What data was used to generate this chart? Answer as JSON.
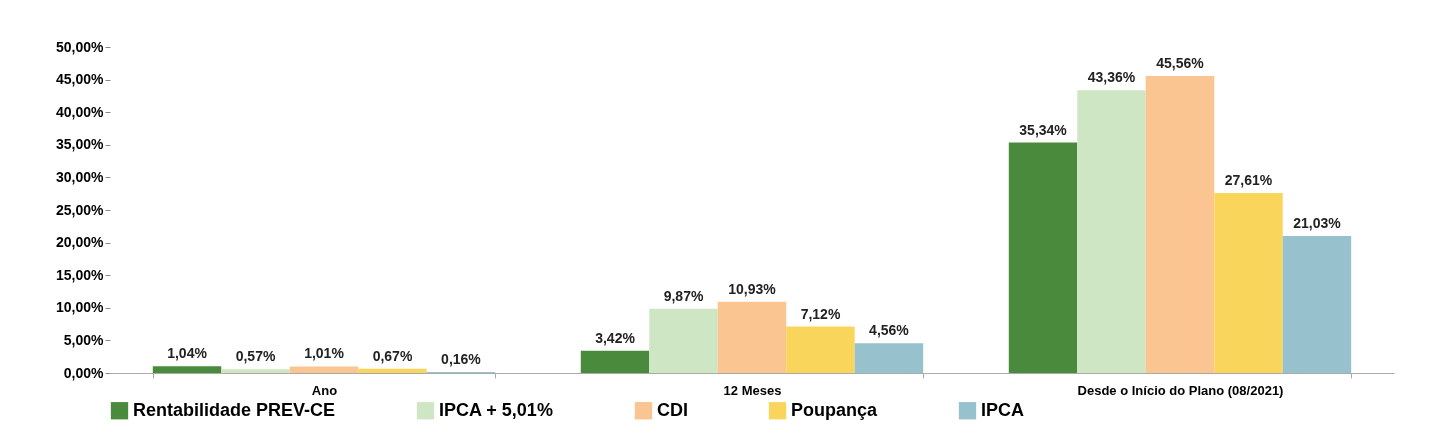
{
  "chart_data": {
    "type": "bar",
    "categories": [
      "Ano",
      "12 Meses",
      "Desde o Início do Plano (08/2021)"
    ],
    "series": [
      {
        "name": "Rentabilidade PREV-CE",
        "color": "#4a8a3c",
        "values": [
          1.04,
          3.42,
          35.34
        ],
        "value_labels": [
          "1,04%",
          "3,42%",
          "35,34%"
        ]
      },
      {
        "name": "IPCA + 5,01%",
        "color": "#cfe6c5",
        "values": [
          0.57,
          9.87,
          43.36
        ],
        "value_labels": [
          "0,57%",
          "9,87%",
          "43,36%"
        ]
      },
      {
        "name": "CDI",
        "color": "#fbc592",
        "values": [
          1.01,
          10.93,
          45.56
        ],
        "value_labels": [
          "1,01%",
          "10,93%",
          "45,56%"
        ]
      },
      {
        "name": "Poupança",
        "color": "#fad55c",
        "values": [
          0.67,
          7.12,
          27.61
        ],
        "value_labels": [
          "0,67%",
          "7,12%",
          "27,61%"
        ]
      },
      {
        "name": "IPCA",
        "color": "#97c1cd",
        "values": [
          0.16,
          4.56,
          21.03
        ],
        "value_labels": [
          "0,16%",
          "4,56%",
          "21,03%"
        ]
      }
    ],
    "ylim": [
      0,
      50
    ],
    "yticks": [
      {
        "value": 0,
        "label": "0,00%"
      },
      {
        "value": 5,
        "label": "5,00%"
      },
      {
        "value": 10,
        "label": "10,00%"
      },
      {
        "value": 15,
        "label": "15,00%"
      },
      {
        "value": 20,
        "label": "20,00%"
      },
      {
        "value": 25,
        "label": "25,00%"
      },
      {
        "value": 30,
        "label": "30,00%"
      },
      {
        "value": 35,
        "label": "35,00%"
      },
      {
        "value": 40,
        "label": "40,00%"
      },
      {
        "value": 45,
        "label": "45,00%"
      },
      {
        "value": 50,
        "label": "50,00%"
      }
    ],
    "grid": false,
    "legend": "bottom"
  }
}
